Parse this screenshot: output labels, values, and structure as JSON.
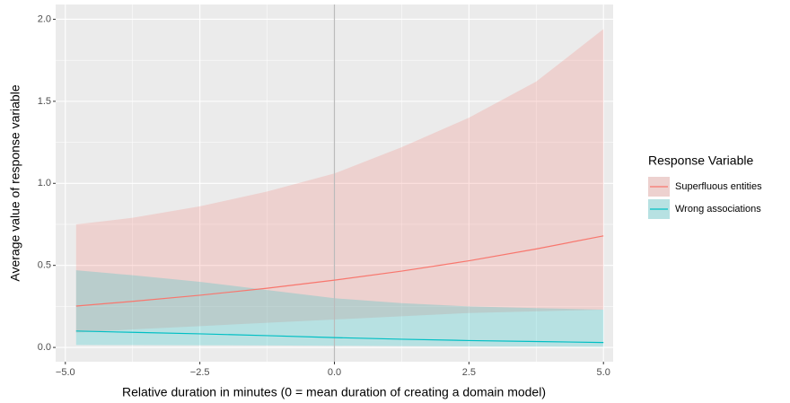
{
  "chart_data": {
    "type": "line",
    "x_label": "Relative duration in minutes (0 = mean duration of creating a domain model)",
    "y_label": "Average value of response variable",
    "legend_title": "Response Variable",
    "legend": "right",
    "x": [
      -4.8,
      -3.75,
      -2.5,
      -1.25,
      0,
      1.25,
      2.5,
      3.75,
      5
    ],
    "series": [
      {
        "name": "Superfluous entities",
        "color": "#F8766D",
        "values": [
          0.252,
          0.281,
          0.318,
          0.361,
          0.41,
          0.465,
          0.528,
          0.6,
          0.68
        ],
        "lower": [
          0.09,
          0.11,
          0.13,
          0.15,
          0.17,
          0.19,
          0.21,
          0.22,
          0.23
        ],
        "upper": [
          0.75,
          0.79,
          0.86,
          0.95,
          1.06,
          1.22,
          1.4,
          1.62,
          1.94
        ]
      },
      {
        "name": "Wrong associations",
        "color": "#00BFC4",
        "values": [
          0.1,
          0.092,
          0.083,
          0.072,
          0.06,
          0.05,
          0.042,
          0.036,
          0.03
        ],
        "lower": [
          0.015,
          0.014,
          0.013,
          0.012,
          0.01,
          0.008,
          0.006,
          0.005,
          0.004
        ],
        "upper": [
          0.47,
          0.44,
          0.4,
          0.35,
          0.3,
          0.27,
          0.25,
          0.24,
          0.23
        ]
      }
    ],
    "vline": 0,
    "xlim": [
      -5.18,
      5.18
    ],
    "ylim": [
      -0.087,
      2.09
    ],
    "xticks": [
      {
        "value": -5,
        "label": "−5.0"
      },
      {
        "value": -2.5,
        "label": "−2.5"
      },
      {
        "value": 0,
        "label": "0.0"
      },
      {
        "value": 2.5,
        "label": "2.5"
      },
      {
        "value": 5,
        "label": "5.0"
      }
    ],
    "yticks": [
      {
        "value": 0,
        "label": "0.0"
      },
      {
        "value": 0.5,
        "label": "0.5"
      },
      {
        "value": 1,
        "label": "1.0"
      },
      {
        "value": 1.5,
        "label": "1.5"
      },
      {
        "value": 2,
        "label": "2.0"
      }
    ],
    "grid": true
  }
}
